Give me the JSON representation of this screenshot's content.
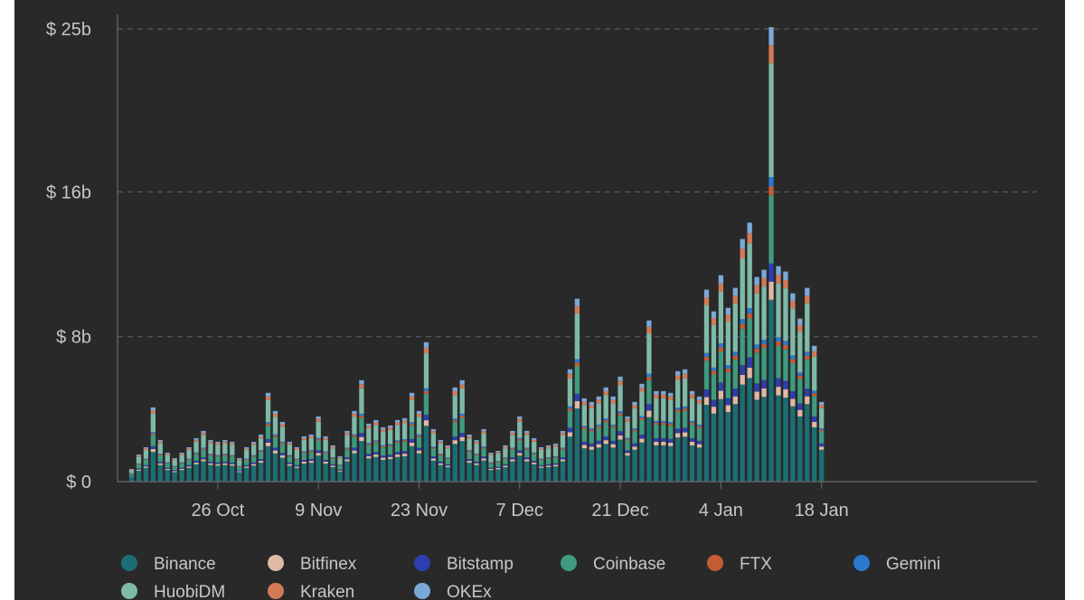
{
  "chart_data": {
    "type": "bar",
    "stacked": true,
    "title": "",
    "xlabel": "",
    "ylabel": "",
    "y_ticks": [
      {
        "value": 0,
        "label": "$ 0"
      },
      {
        "value": 8,
        "label": "$ 8b"
      },
      {
        "value": 16,
        "label": "$ 16b"
      },
      {
        "value": 25,
        "label": "$ 25b"
      }
    ],
    "y_unit": "billions of US dollars",
    "x_ticks": [
      {
        "index": 12,
        "label": "26 Oct"
      },
      {
        "index": 26,
        "label": "9 Nov"
      },
      {
        "index": 40,
        "label": "23 Nov"
      },
      {
        "index": 54,
        "label": "7 Dec"
      },
      {
        "index": 68,
        "label": "21 Dec"
      },
      {
        "index": 82,
        "label": "4 Jan"
      },
      {
        "index": 96,
        "label": "18 Jan"
      }
    ],
    "grid": true,
    "legend_position": "bottom",
    "totals": [
      0.7,
      1.5,
      1.9,
      4.1,
      2.3,
      1.6,
      1.3,
      1.6,
      1.9,
      2.4,
      2.8,
      2.3,
      2.2,
      2.3,
      2.2,
      1.3,
      1.9,
      2.2,
      2.6,
      4.9,
      3.9,
      3.3,
      2.2,
      1.9,
      2.5,
      2.6,
      3.6,
      2.5,
      2.0,
      1.4,
      2.8,
      3.9,
      5.6,
      3.2,
      3.4,
      3.0,
      3.1,
      3.4,
      3.5,
      4.9,
      3.9,
      7.7,
      2.9,
      2.3,
      2.0,
      5.2,
      5.6,
      2.6,
      2.3,
      2.9,
      1.6,
      1.7,
      2.0,
      2.8,
      3.6,
      2.8,
      2.4,
      1.9,
      2.0,
      2.1,
      2.8,
      6.2,
      10.1,
      4.6,
      4.4,
      4.7,
      5.2,
      4.7,
      5.8,
      3.6,
      4.4,
      5.4,
      8.9,
      5.0,
      5.0,
      4.9,
      6.1,
      6.2,
      5.0,
      4.7,
      10.6,
      9.4,
      11.4,
      9.6,
      10.7,
      13.4,
      14.3,
      11.3,
      11.7,
      25.1,
      11.9,
      11.6,
      10.4,
      9.0,
      10.7,
      7.5,
      4.4
    ],
    "shares": [
      {
        "name": "Binance",
        "share": 0.4
      },
      {
        "name": "Bitfinex",
        "share": 0.04
      },
      {
        "name": "Bitstamp",
        "share": 0.04
      },
      {
        "name": "Coinbase",
        "share": 0.15
      },
      {
        "name": "FTX",
        "share": 0.02
      },
      {
        "name": "Gemini",
        "share": 0.02
      },
      {
        "name": "HuobiDM",
        "share": 0.25
      },
      {
        "name": "Kraken",
        "share": 0.04
      },
      {
        "name": "OKEx",
        "share": 0.04
      }
    ],
    "series": [
      {
        "name": "Binance",
        "color": "#1c6e74"
      },
      {
        "name": "Bitfinex",
        "color": "#ddb9a6"
      },
      {
        "name": "Bitstamp",
        "color": "#2d3fae"
      },
      {
        "name": "Coinbase",
        "color": "#3f9a80"
      },
      {
        "name": "FTX",
        "color": "#c35c34"
      },
      {
        "name": "Gemini",
        "color": "#2a78cf"
      },
      {
        "name": "HuobiDM",
        "color": "#7fb9a8"
      },
      {
        "name": "Kraken",
        "color": "#d17a56"
      },
      {
        "name": "OKEx",
        "color": "#7aa9d9"
      }
    ],
    "ylim": [
      0,
      25.8
    ]
  },
  "colors": {
    "background": "#292929",
    "grid": "#5a5a5a",
    "axis": "#6b6b6b",
    "text": "#c7c7c7"
  }
}
